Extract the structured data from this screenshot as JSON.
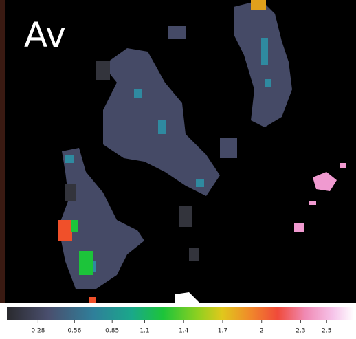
{
  "title": "Av",
  "colorbar": {
    "clim": [
      0.04,
      2.71
    ],
    "ticks": [
      0.28,
      0.56,
      0.85,
      1.1,
      1.4,
      1.7,
      2,
      2.3,
      2.5
    ]
  }
}
